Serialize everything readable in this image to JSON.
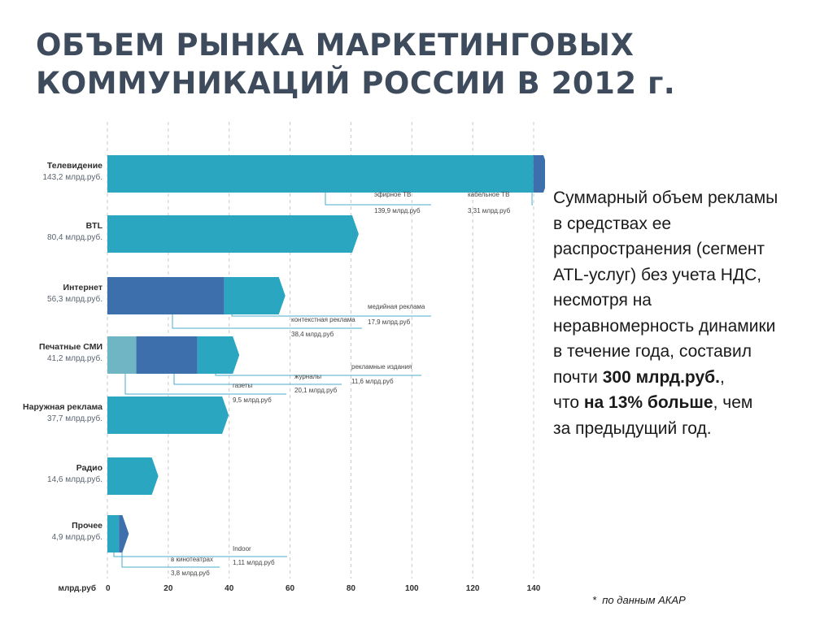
{
  "title": {
    "line1": "ОБЪЕМ РЫНКА МАРКЕТИНГОВЫХ",
    "line2": "КОММУНИКАЦИЙ РОССИИ В 2012 г."
  },
  "summary": {
    "l1": " Суммарный объем рекламы",
    "l2": "в средствах ее",
    "l3": "распространения (сегмент",
    "l4": "ATL-услуг) без учета НДС,",
    "l5": "несмотря на",
    "l6": "неравномерность динамики",
    "l7": "в течение года, составил",
    "l8_pre": "почти ",
    "l8_bold": "300 млрд.руб.",
    "l8_post": ",",
    "l9_pre": "что ",
    "l9_bold": "на 13% больше",
    "l9_post": ", чем",
    "l10": "за предыдущий год."
  },
  "footnote": "*  по данным АКАР",
  "colors": {
    "teal": "#2aa6c1",
    "blue": "#3d6fad",
    "light": "#6fb5c4",
    "dark_label": "#2d2d2d",
    "sub_label": "#5a6470",
    "grid": "#c9c9c9",
    "leader": "#4aaecb"
  },
  "chart_data": {
    "type": "bar",
    "orientation": "horizontal",
    "stacked": true,
    "xlabel": "млрд.руб",
    "xlim": [
      0,
      140
    ],
    "xticks": [
      0,
      20,
      40,
      60,
      80,
      100,
      120,
      140
    ],
    "grid": true,
    "categories": [
      {
        "name": "Телевидение",
        "value_label": "143,2 млрд.руб.",
        "segments": [
          {
            "name": "эфирное ТВ",
            "value": 139.9,
            "label": "139,9 млрд.руб",
            "color": "teal"
          },
          {
            "name": "кабельное ТВ",
            "value": 3.31,
            "label": "3,31 млрд.руб",
            "color": "blue"
          }
        ]
      },
      {
        "name": "BTL",
        "value_label": "80,4 млрд.руб.",
        "segments": [
          {
            "name": "",
            "value": 80.4,
            "label": "",
            "color": "teal"
          }
        ]
      },
      {
        "name": "Интернет",
        "value_label": "56,3 млрд.руб.",
        "segments": [
          {
            "name": "контекстная реклама",
            "value": 38.4,
            "label": "38,4 млрд.руб",
            "color": "blue"
          },
          {
            "name": "медийная реклама",
            "value": 17.9,
            "label": "17,9 млрд.руб",
            "color": "teal"
          }
        ]
      },
      {
        "name": "Печатные СМИ",
        "value_label": "41,2 млрд.руб.",
        "segments": [
          {
            "name": "газеты",
            "value": 9.5,
            "label": "9,5 млрд.руб",
            "color": "light"
          },
          {
            "name": "журналы",
            "value": 20.1,
            "label": "20,1 млрд.руб",
            "color": "blue"
          },
          {
            "name": "рекламные издания",
            "value": 11.6,
            "label": "11,6 млрд.руб",
            "color": "teal"
          }
        ]
      },
      {
        "name": "Наружная реклама",
        "value_label": "37,7 млрд.руб.",
        "segments": [
          {
            "name": "",
            "value": 37.7,
            "label": "",
            "color": "teal"
          }
        ]
      },
      {
        "name": "Радио",
        "value_label": "14,6 млрд.руб.",
        "segments": [
          {
            "name": "",
            "value": 14.6,
            "label": "",
            "color": "teal"
          }
        ]
      },
      {
        "name": "Прочее",
        "value_label": "4,9 млрд.руб.",
        "segments": [
          {
            "name": "в кинотеатрах",
            "value": 3.8,
            "label": "3,8 млрд.руб",
            "color": "teal"
          },
          {
            "name": "Indoor",
            "value": 1.11,
            "label": "1,11 млрд.руб",
            "color": "blue"
          }
        ]
      }
    ]
  }
}
